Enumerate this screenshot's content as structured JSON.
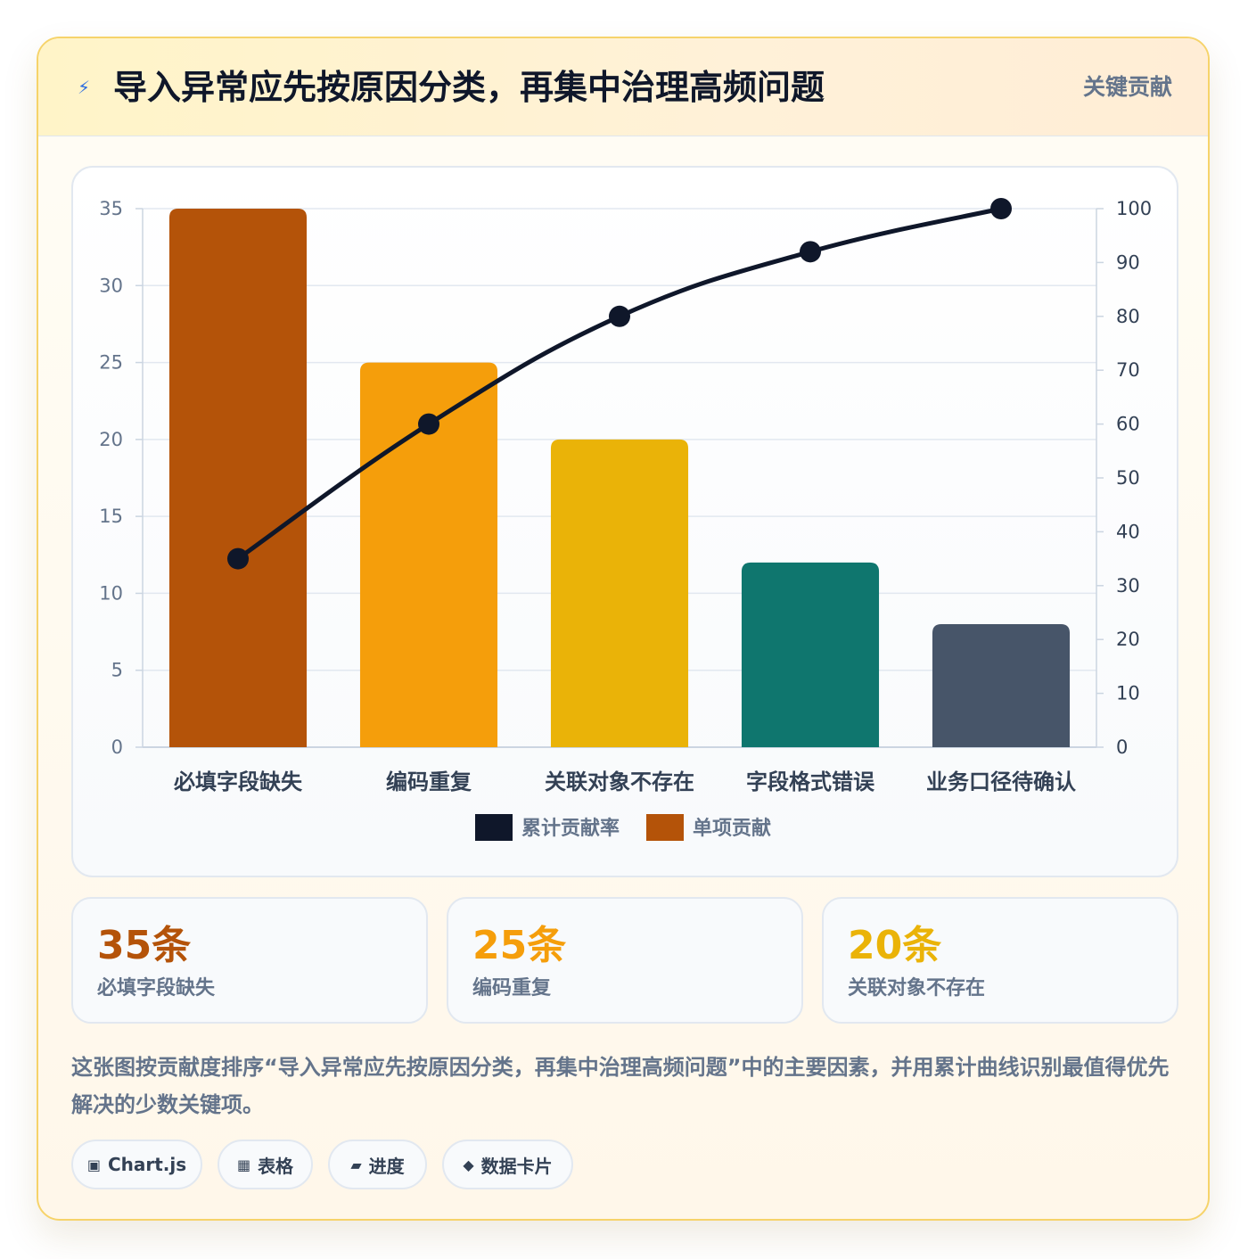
{
  "header": {
    "icon": "lightning-icon",
    "title": "导入异常应先按原因分类，再集中治理高频问题",
    "badge": "关键贡献"
  },
  "chart_data": {
    "type": "bar",
    "categories": [
      "必填字段缺失",
      "编码重复",
      "关联对象不存在",
      "字段格式错误",
      "业务口径待确认"
    ],
    "series": [
      {
        "name": "累计贡献率",
        "type": "line",
        "axis": "right",
        "color": "#0f172a",
        "values": [
          35,
          60,
          80,
          92,
          100
        ]
      },
      {
        "name": "单项贡献",
        "type": "bar",
        "axis": "left",
        "color": "#b45309",
        "values": [
          35,
          25,
          20,
          12,
          8
        ]
      }
    ],
    "bar_colors": [
      "#b45309",
      "#f59e0b",
      "#eab308",
      "#0f766e",
      "#475569"
    ],
    "y_left": {
      "min": 0,
      "max": 35,
      "ticks": [
        "0",
        "5",
        "10",
        "15",
        "20",
        "25",
        "30",
        "35"
      ]
    },
    "y_right": {
      "min": 0,
      "max": 100,
      "ticks": [
        "0",
        "10",
        "20",
        "30",
        "40",
        "50",
        "60",
        "70",
        "80",
        "90",
        "100"
      ]
    },
    "grid": true,
    "legend": "bottom"
  },
  "stats": [
    {
      "value": "35条",
      "label": "必填字段缺失",
      "color": "#b45309"
    },
    {
      "value": "25条",
      "label": "编码重复",
      "color": "#f59e0b"
    },
    {
      "value": "20条",
      "label": "关联对象不存在",
      "color": "#eab308"
    }
  ],
  "description": "这张图按贡献度排序“导入异常应先按原因分类，再集中治理高频问题”中的主要因素，并用累计曲线识别最值得优先解决的少数关键项。",
  "tags": [
    {
      "icon": "chart-icon",
      "glyph": "▣",
      "label": "Chart.js"
    },
    {
      "icon": "table-icon",
      "glyph": "▦",
      "label": "表格"
    },
    {
      "icon": "progress-icon",
      "glyph": "▰",
      "label": "进度"
    },
    {
      "icon": "data-card-icon",
      "glyph": "◆",
      "label": "数据卡片"
    }
  ]
}
